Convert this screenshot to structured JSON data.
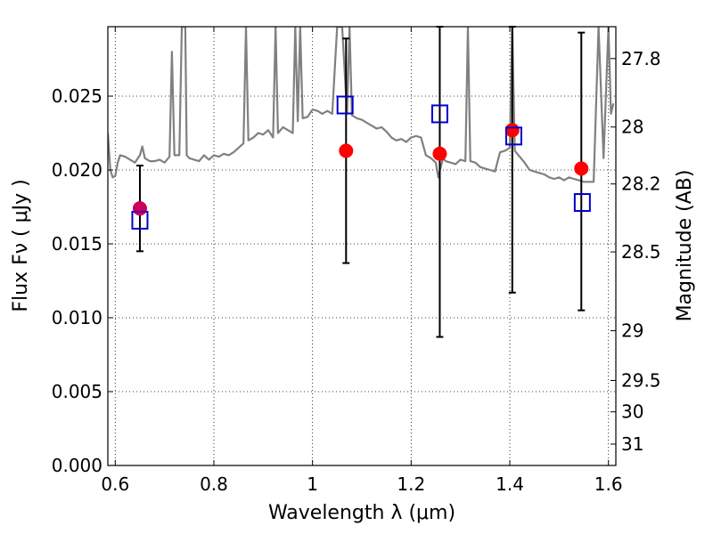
{
  "chart_data": {
    "type": "scatter",
    "title": "",
    "xlabel": "Wavelength  λ (μm)",
    "ylabel": "Flux  Fν  ( μJy )",
    "y2label": "Magnitude (AB)",
    "xlim": [
      0.585,
      1.615
    ],
    "ylim": [
      0.0,
      0.0297
    ],
    "grid": true,
    "x_ticks": [
      0.6,
      0.8,
      1.0,
      1.2,
      1.4,
      1.6
    ],
    "x_tick_labels": [
      "0.6",
      "0.8",
      "1",
      "1.2",
      "1.4",
      "1.6"
    ],
    "y_ticks": [
      0.0,
      0.005,
      0.01,
      0.015,
      0.02,
      0.025
    ],
    "y_tick_labels": [
      "0.000",
      "0.005",
      "0.010",
      "0.015",
      "0.020",
      "0.025"
    ],
    "y2_ticks": [
      27.8,
      28,
      28.2,
      28.5,
      29,
      29.5,
      30,
      31
    ],
    "y2_tick_labels": [
      "27.8",
      "28",
      "28.2",
      "28.5",
      "29",
      "29.5",
      "30",
      "31"
    ],
    "series": [
      {
        "kind": "observed-flux-with-errors",
        "color": "#ff0000",
        "points": [
          {
            "x": 0.65,
            "y": 0.0174,
            "ylow": 0.0145,
            "yhigh": 0.0203
          },
          {
            "x": 1.068,
            "y": 0.0213,
            "ylow": 0.0137,
            "yhigh": 0.0289
          },
          {
            "x": 1.258,
            "y": 0.0211,
            "ylow": 0.0087,
            "yhigh": 0.0297
          },
          {
            "x": 1.405,
            "y": 0.0227,
            "ylow": 0.0117,
            "yhigh": 0.0297
          },
          {
            "x": 1.545,
            "y": 0.0201,
            "ylow": 0.0105,
            "yhigh": 0.0293
          }
        ]
      },
      {
        "kind": "model-photometry",
        "color": "#0000cc",
        "marker": "open-square",
        "points": [
          {
            "x": 0.65,
            "y": 0.0166
          },
          {
            "x": 1.066,
            "y": 0.0244
          },
          {
            "x": 1.258,
            "y": 0.0238
          },
          {
            "x": 1.408,
            "y": 0.0223
          },
          {
            "x": 1.547,
            "y": 0.0178
          }
        ]
      },
      {
        "kind": "model-spectrum",
        "color": "#808080",
        "x": [
          0.585,
          0.59,
          0.595,
          0.6,
          0.605,
          0.61,
          0.62,
          0.63,
          0.64,
          0.65,
          0.655,
          0.66,
          0.67,
          0.68,
          0.69,
          0.7,
          0.71,
          0.715,
          0.72,
          0.73,
          0.735,
          0.738,
          0.742,
          0.745,
          0.75,
          0.76,
          0.77,
          0.78,
          0.79,
          0.8,
          0.81,
          0.82,
          0.83,
          0.84,
          0.85,
          0.86,
          0.865,
          0.87,
          0.88,
          0.89,
          0.9,
          0.91,
          0.92,
          0.925,
          0.93,
          0.94,
          0.95,
          0.96,
          0.965,
          0.97,
          0.975,
          0.98,
          0.99,
          1.0,
          1.01,
          1.02,
          1.03,
          1.04,
          1.05,
          1.06,
          1.07,
          1.075,
          1.08,
          1.09,
          1.1,
          1.11,
          1.12,
          1.13,
          1.14,
          1.15,
          1.16,
          1.17,
          1.18,
          1.19,
          1.2,
          1.21,
          1.22,
          1.23,
          1.24,
          1.25,
          1.255,
          1.26,
          1.265,
          1.27,
          1.28,
          1.29,
          1.3,
          1.31,
          1.315,
          1.32,
          1.33,
          1.34,
          1.35,
          1.36,
          1.37,
          1.38,
          1.39,
          1.4,
          1.405,
          1.41,
          1.42,
          1.43,
          1.44,
          1.45,
          1.46,
          1.47,
          1.48,
          1.49,
          1.5,
          1.51,
          1.52,
          1.53,
          1.54,
          1.55,
          1.56,
          1.57,
          1.58,
          1.59,
          1.6,
          1.605,
          1.61
        ],
        "y": [
          0.0225,
          0.02,
          0.0195,
          0.0196,
          0.0205,
          0.021,
          0.0209,
          0.0207,
          0.0205,
          0.021,
          0.0216,
          0.0208,
          0.0206,
          0.0206,
          0.0207,
          0.0205,
          0.0209,
          0.028,
          0.021,
          0.021,
          0.0297,
          0.0297,
          0.0297,
          0.021,
          0.0208,
          0.0207,
          0.0206,
          0.021,
          0.0207,
          0.021,
          0.0209,
          0.0211,
          0.021,
          0.0212,
          0.0215,
          0.0218,
          0.0297,
          0.022,
          0.0222,
          0.0225,
          0.0224,
          0.0227,
          0.0222,
          0.0297,
          0.0225,
          0.0229,
          0.0227,
          0.0225,
          0.0297,
          0.0233,
          0.0297,
          0.0235,
          0.0236,
          0.0241,
          0.024,
          0.0238,
          0.024,
          0.0238,
          0.0297,
          0.0297,
          0.0238,
          0.0297,
          0.0237,
          0.0235,
          0.0234,
          0.0232,
          0.023,
          0.0228,
          0.0229,
          0.0226,
          0.0222,
          0.022,
          0.0221,
          0.0219,
          0.0222,
          0.0223,
          0.0222,
          0.021,
          0.0208,
          0.0205,
          0.0195,
          0.0202,
          0.0208,
          0.0206,
          0.0205,
          0.0204,
          0.0207,
          0.0206,
          0.0297,
          0.0206,
          0.0205,
          0.0202,
          0.0201,
          0.02,
          0.0199,
          0.0212,
          0.0213,
          0.0215,
          0.0297,
          0.0213,
          0.0209,
          0.0205,
          0.02,
          0.0199,
          0.0198,
          0.0197,
          0.0195,
          0.0194,
          0.0195,
          0.0193,
          0.0195,
          0.0194,
          0.0193,
          0.0192,
          0.0192,
          0.0192,
          0.0297,
          0.0208,
          0.0297,
          0.0238,
          0.0245
        ]
      }
    ]
  }
}
